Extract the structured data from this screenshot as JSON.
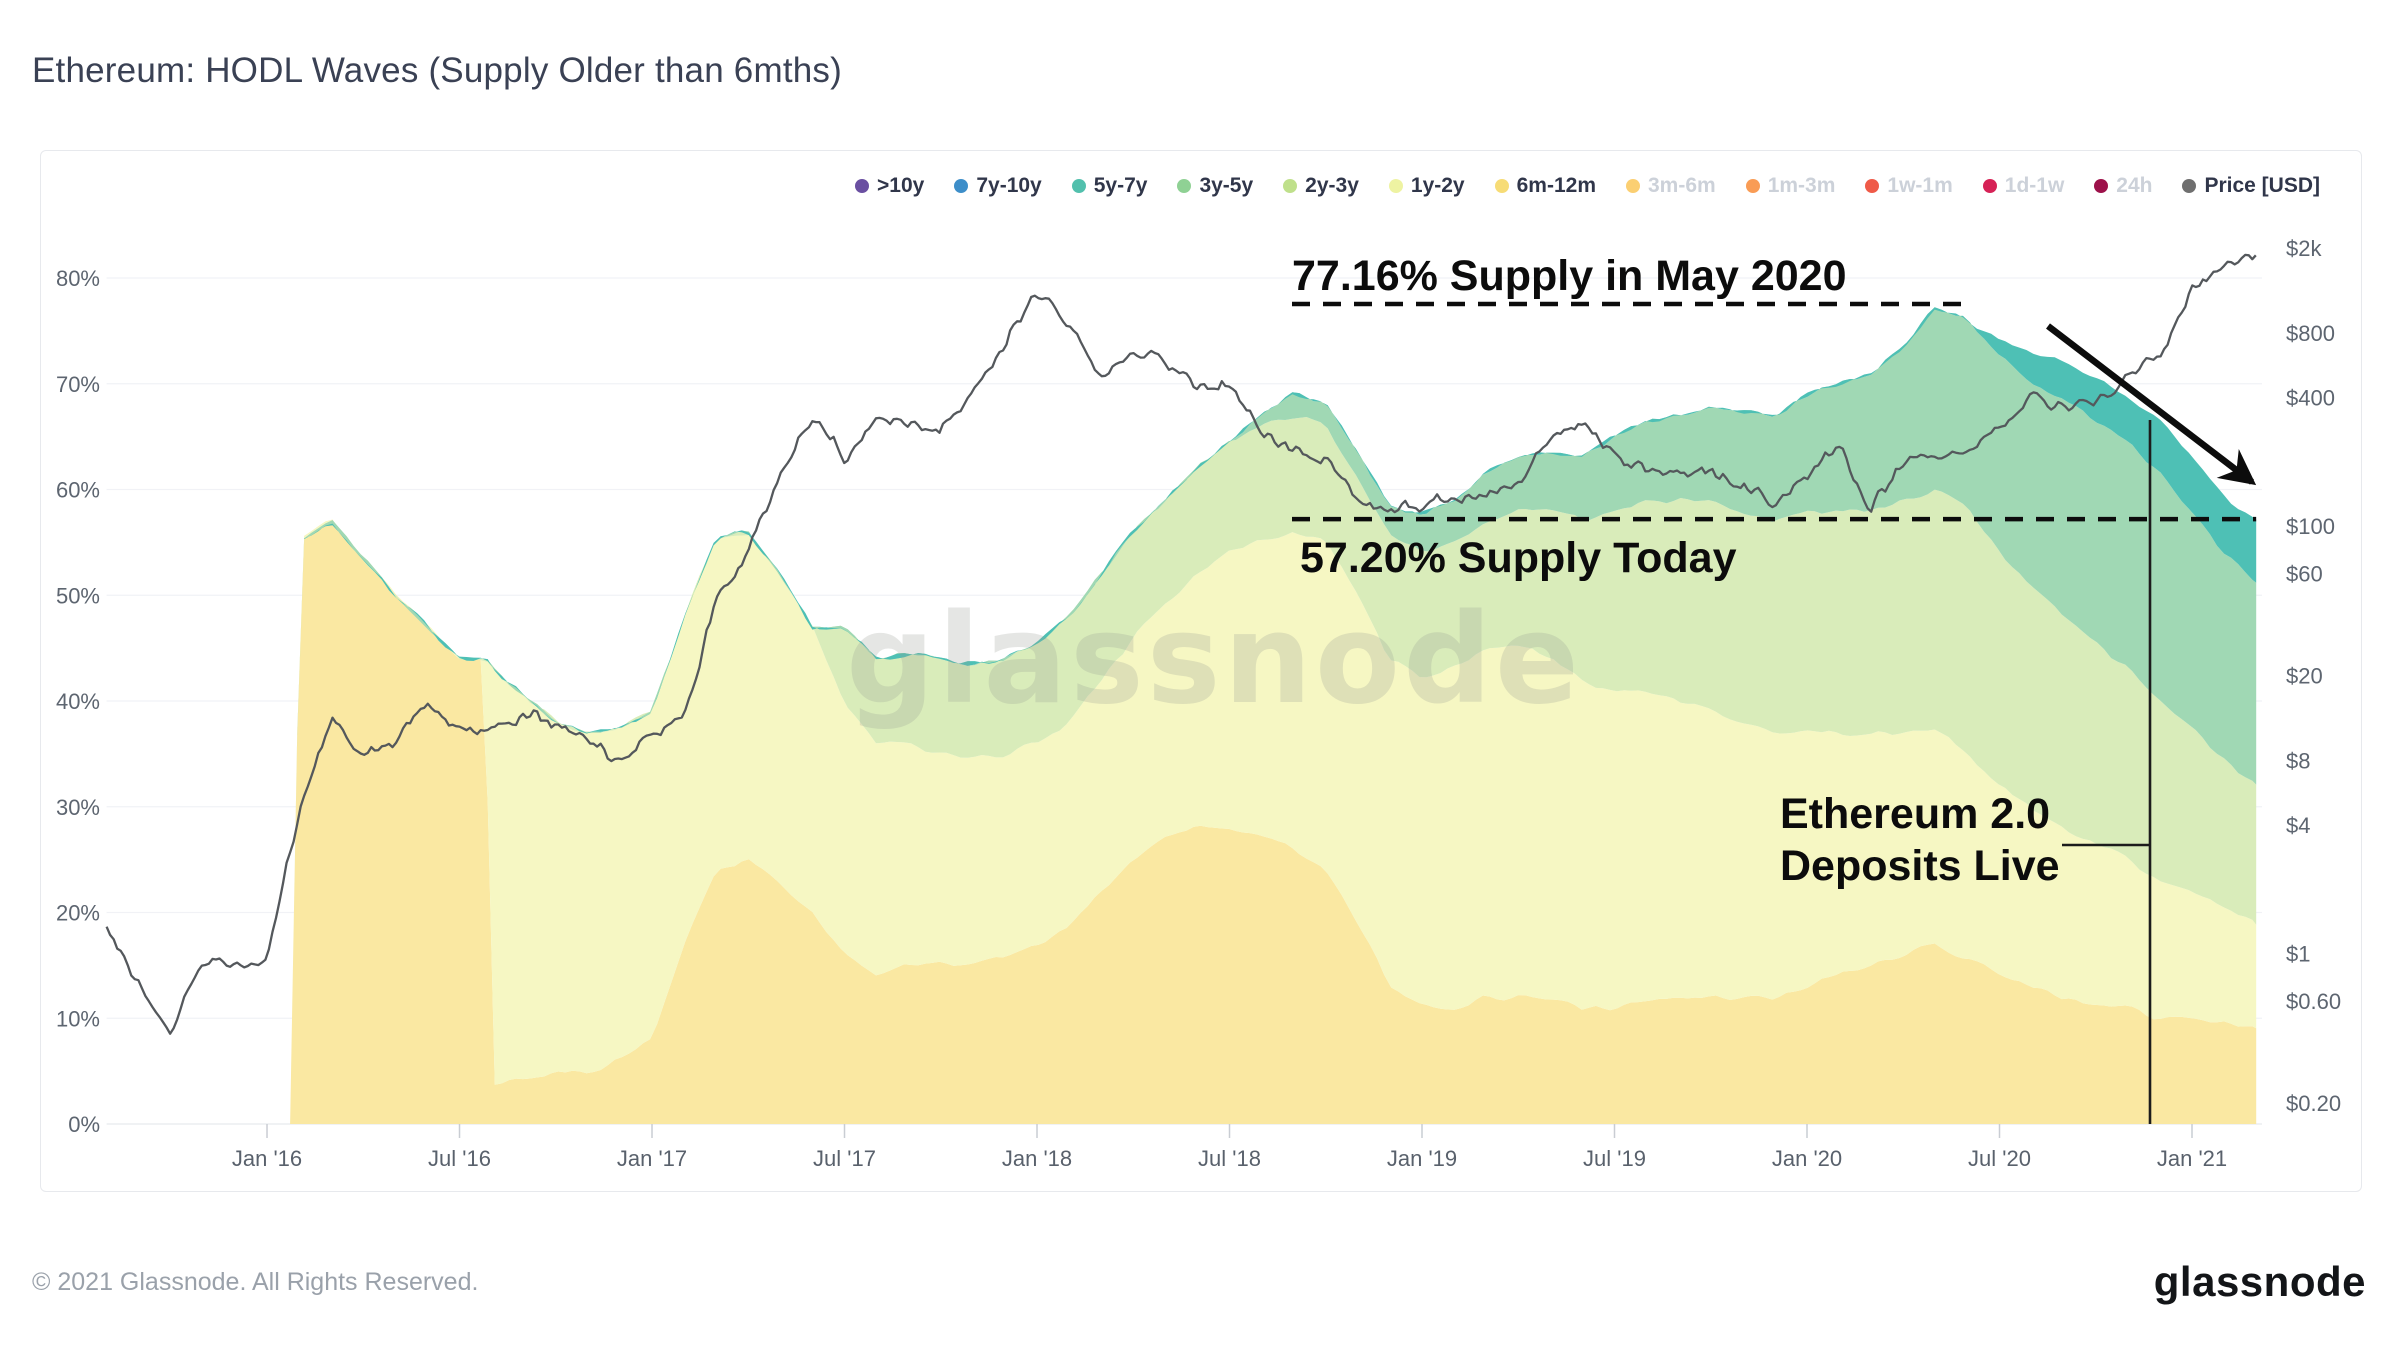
{
  "page": {
    "title": "Ethereum: HODL Waves (Supply Older than 6mths)",
    "watermark": "glassnode",
    "footer_copyright": "© 2021 Glassnode. All Rights Reserved.",
    "brand_logo": "glassnode"
  },
  "legend": {
    "items": [
      {
        "label": ">10y",
        "color": "#6a4fa1",
        "active": true
      },
      {
        "label": "7y-10y",
        "color": "#3d8ec9",
        "active": true
      },
      {
        "label": "5y-7y",
        "color": "#52c0ad",
        "active": true
      },
      {
        "label": "3y-5y",
        "color": "#8fd194",
        "active": true
      },
      {
        "label": "2y-3y",
        "color": "#bfe08b",
        "active": true
      },
      {
        "label": "1y-2y",
        "color": "#eef3a2",
        "active": true
      },
      {
        "label": "6m-12m",
        "color": "#f7dc76",
        "active": true
      },
      {
        "label": "3m-6m",
        "color": "#fbcf72",
        "active": false
      },
      {
        "label": "1m-3m",
        "color": "#f99c55",
        "active": false
      },
      {
        "label": "1w-1m",
        "color": "#ef5a48",
        "active": false
      },
      {
        "label": "1d-1w",
        "color": "#d62256",
        "active": false
      },
      {
        "label": "24h",
        "color": "#9d114a",
        "active": false
      },
      {
        "label": "Price [USD]",
        "color": "#6f6f6f",
        "active": true
      }
    ]
  },
  "annotations": {
    "may2020": {
      "label": "77.16% Supply in May 2020",
      "pct": 77.16
    },
    "today": {
      "label": "57.20% Supply Today",
      "pct": 57.2
    },
    "eth2": {
      "label_line1": "Ethereum 2.0",
      "label_line2": "Deposits Live",
      "month": "2020-11"
    }
  },
  "chart_data": {
    "type": "area",
    "stacked": true,
    "title": "Ethereum: HODL Waves (Supply Older than 6mths)",
    "x_range": {
      "start": "2015-08",
      "end": "2021-03",
      "step": "month",
      "points": 68
    },
    "x_ticks": [
      {
        "label": "Jan '16",
        "index": 5
      },
      {
        "label": "Jul '16",
        "index": 11
      },
      {
        "label": "Jan '17",
        "index": 17
      },
      {
        "label": "Jul '17",
        "index": 23
      },
      {
        "label": "Jan '18",
        "index": 29
      },
      {
        "label": "Jul '18",
        "index": 35
      },
      {
        "label": "Jan '19",
        "index": 41
      },
      {
        "label": "Jul '19",
        "index": 47
      },
      {
        "label": "Jan '20",
        "index": 53
      },
      {
        "label": "Jul '20",
        "index": 59
      },
      {
        "label": "Jan '21",
        "index": 65
      }
    ],
    "y_left": {
      "unit": "%",
      "ticks": [
        0,
        10,
        20,
        30,
        40,
        50,
        60,
        70,
        80
      ],
      "tick_labels": [
        "0%",
        "10%",
        "20%",
        "30%",
        "40%",
        "50%",
        "60%",
        "70%",
        "80%"
      ]
    },
    "y_right": {
      "scale": "log",
      "unit": "USD",
      "ticks": [
        {
          "value": 2000,
          "label": "$2k"
        },
        {
          "value": 800,
          "label": "$800"
        },
        {
          "value": 400,
          "label": "$400"
        },
        {
          "value": 100,
          "label": "$100"
        },
        {
          "value": 60,
          "label": "$60"
        },
        {
          "value": 20,
          "label": "$20"
        },
        {
          "value": 8,
          "label": "$8"
        },
        {
          "value": 4,
          "label": "$4"
        },
        {
          "value": 1,
          "label": "$1"
        },
        {
          "value": 0.6,
          "label": "$0.60"
        },
        {
          "value": 0.2,
          "label": "$0.20"
        }
      ]
    },
    "series": [
      {
        "name": "6m-12m",
        "color": "#fae8a2",
        "values": [
          0,
          0,
          0,
          0,
          0,
          0,
          55,
          57,
          53.5,
          50,
          47,
          44,
          4,
          4.5,
          5,
          5,
          6,
          8,
          17,
          24,
          25,
          23,
          20,
          16,
          14,
          15,
          15,
          15,
          16,
          17,
          19,
          22,
          25,
          27,
          28,
          28,
          27,
          26,
          24,
          19,
          13,
          11,
          11,
          12,
          12,
          12,
          11,
          11,
          12,
          12,
          12,
          12,
          12,
          13,
          14,
          15,
          16,
          17,
          15.5,
          14,
          13,
          12,
          11.5,
          11,
          10,
          10,
          9.5,
          9
        ]
      },
      {
        "name": "1y-2y",
        "color": "#f6f7c3",
        "values": [
          0,
          0,
          0,
          0,
          0,
          0,
          0,
          0,
          0,
          0,
          0,
          0,
          39,
          36,
          33,
          32,
          31.5,
          31,
          31,
          31.5,
          31,
          29,
          27,
          24,
          22,
          21,
          20,
          19.5,
          19,
          19,
          19,
          20,
          21,
          22,
          24,
          26,
          28,
          30,
          31,
          31,
          31,
          31,
          32,
          33,
          33,
          32,
          31,
          30,
          29,
          28,
          27,
          26,
          25,
          24,
          23,
          22,
          21,
          20.5,
          19.5,
          18,
          17,
          16,
          15,
          14,
          13,
          12,
          11,
          10.2
        ]
      },
      {
        "name": "2y-3y",
        "color": "#d9ecba",
        "values": [
          0,
          0,
          0,
          0,
          0,
          0,
          0,
          0,
          0,
          0,
          0,
          0,
          0,
          0,
          0,
          0,
          0,
          0,
          0,
          0,
          0,
          0,
          0,
          7,
          8,
          8.5,
          9,
          9,
          9,
          9.5,
          10,
          10,
          10,
          10,
          10,
          10.5,
          11,
          11,
          11,
          11,
          11.5,
          12,
          12,
          12,
          13,
          14,
          15,
          17,
          18,
          19,
          20,
          20,
          20,
          21,
          21,
          21,
          22,
          22.5,
          23,
          22,
          21,
          20,
          19,
          18,
          17,
          15.5,
          14,
          12.8
        ]
      },
      {
        "name": "3y-5y",
        "color": "#a0d8b4",
        "values": [
          0,
          0,
          0,
          0,
          0,
          0,
          0,
          0,
          0,
          0,
          0,
          0,
          0,
          0,
          0,
          0,
          0,
          0,
          0,
          0,
          0,
          0,
          0,
          0,
          0,
          0,
          0,
          0,
          0,
          0,
          0,
          0,
          0,
          0,
          0,
          0,
          1,
          2,
          2,
          2.5,
          3,
          3.5,
          4,
          4.5,
          5,
          5.5,
          6,
          7,
          7.5,
          8,
          9,
          9.5,
          10,
          11,
          12,
          13,
          14.5,
          17.16,
          18,
          18.5,
          19,
          20.5,
          21,
          21.5,
          21.5,
          20.5,
          19.5,
          19
        ]
      },
      {
        "name": "5y-7y",
        "color": "#4ec0b5",
        "values": [
          0,
          0,
          0,
          0,
          0,
          0,
          0,
          0,
          0,
          0,
          0,
          0,
          0,
          0,
          0,
          0,
          0,
          0,
          0,
          0,
          0,
          0,
          0,
          0,
          0,
          0,
          0,
          0,
          0,
          0,
          0,
          0,
          0,
          0,
          0,
          0,
          0,
          0,
          0,
          0,
          0,
          0,
          0,
          0,
          0,
          0,
          0,
          0,
          0,
          0,
          0,
          0,
          0,
          0,
          0,
          0,
          0,
          0,
          0,
          1.5,
          3,
          3.5,
          4,
          4.5,
          5,
          5,
          5.5,
          6,
          6.2
        ]
      }
    ],
    "price_series": {
      "name": "Price [USD]",
      "color": "#54585c",
      "values": [
        1.25,
        0.7,
        0.45,
        0.95,
        0.87,
        0.95,
        4.5,
        13,
        8.2,
        9.8,
        15,
        11,
        11.5,
        13,
        12,
        9.8,
        7.8,
        10.3,
        13,
        45,
        75,
        170,
        330,
        210,
        320,
        290,
        300,
        420,
        720,
        1250,
        870,
        500,
        640,
        600,
        450,
        440,
        290,
        220,
        205,
        140,
        115,
        125,
        135,
        138,
        165,
        255,
        300,
        215,
        185,
        175,
        180,
        150,
        128,
        175,
        240,
        120,
        200,
        210,
        230,
        290,
        400,
        360,
        385,
        510,
        640,
        1250,
        1650,
        1800
      ]
    }
  }
}
